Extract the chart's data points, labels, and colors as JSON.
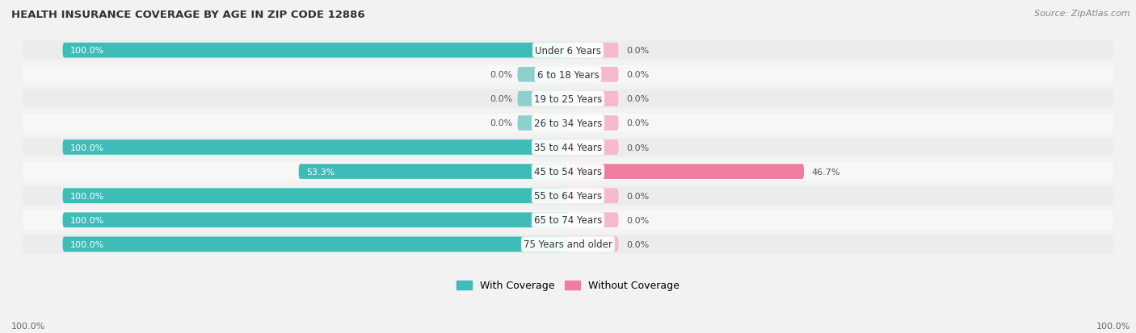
{
  "title": "HEALTH INSURANCE COVERAGE BY AGE IN ZIP CODE 12886",
  "source": "Source: ZipAtlas.com",
  "categories": [
    "Under 6 Years",
    "6 to 18 Years",
    "19 to 25 Years",
    "26 to 34 Years",
    "35 to 44 Years",
    "45 to 54 Years",
    "55 to 64 Years",
    "65 to 74 Years",
    "75 Years and older"
  ],
  "with_coverage": [
    100.0,
    0.0,
    0.0,
    0.0,
    100.0,
    53.3,
    100.0,
    100.0,
    100.0
  ],
  "without_coverage": [
    0.0,
    0.0,
    0.0,
    0.0,
    0.0,
    46.7,
    0.0,
    0.0,
    0.0
  ],
  "color_with_full": "#3dbcb8",
  "color_with_light": "#8ed0ce",
  "color_without_full": "#f07ca0",
  "color_without_light": "#f5b8cc",
  "color_row_odd": "#ececec",
  "color_row_even": "#f7f7f7",
  "fig_width": 14.06,
  "fig_height": 4.14,
  "legend_with": "With Coverage",
  "legend_without": "Without Coverage",
  "x_left_label": "100.0%",
  "x_right_label": "100.0%"
}
